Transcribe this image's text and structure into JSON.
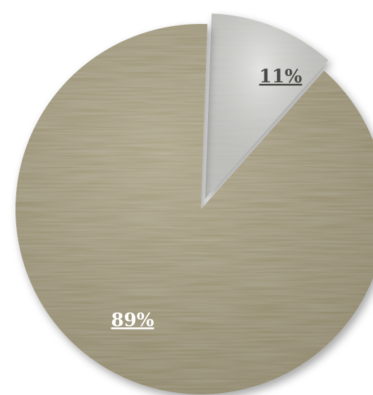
{
  "chart_data": {
    "type": "pie",
    "title": "",
    "exploded": "11%",
    "slices": [
      {
        "label": "11%",
        "value": 11,
        "color": "#d2d2cd",
        "label_color": "#4a4a46"
      },
      {
        "label": "89%",
        "value": 89,
        "color": "#9f9470",
        "label_color": "#ffffff"
      }
    ],
    "legend": "none",
    "start_angle_deg": 2
  }
}
